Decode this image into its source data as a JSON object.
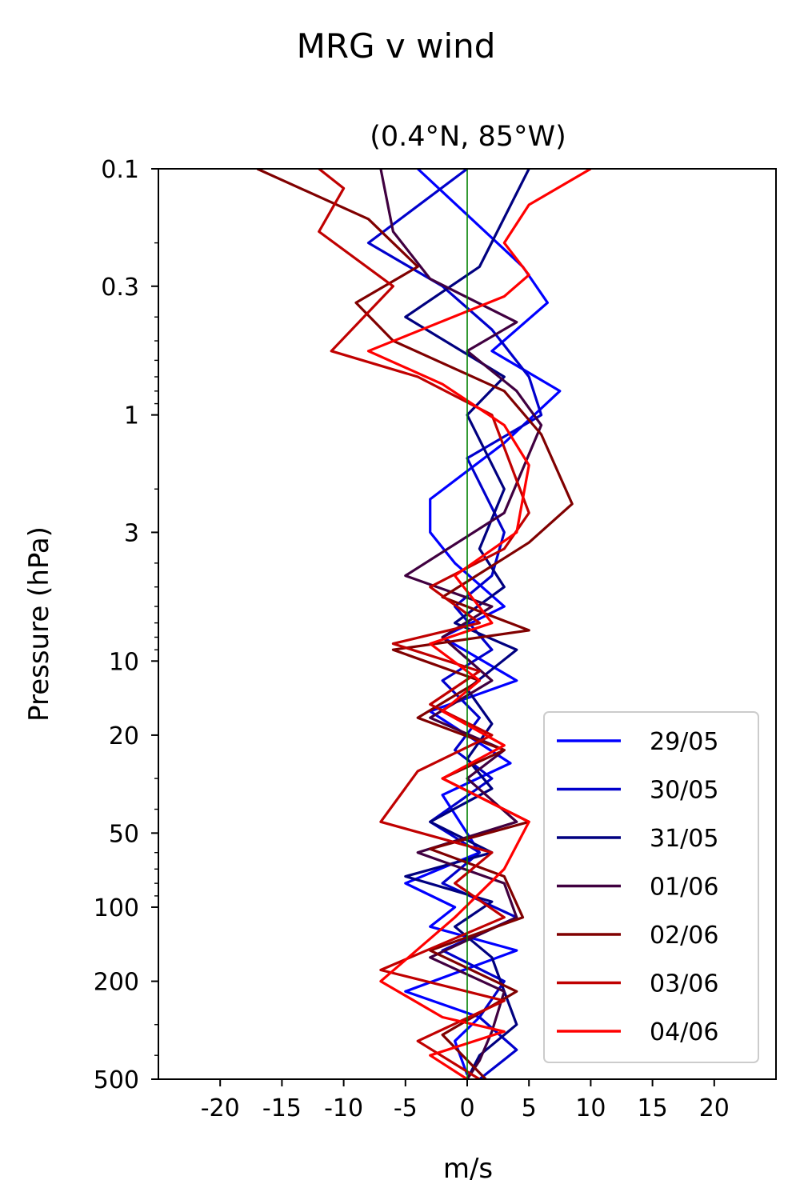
{
  "figure": {
    "suptitle": "MRG v wind",
    "title": "(0.4°N, 85°W)",
    "xlabel": "m/s",
    "ylabel": "Pressure (hPa)"
  },
  "chart_data": {
    "type": "line",
    "title": "(0.4°N, 85°W)",
    "suptitle": "MRG v wind",
    "xlabel": "m/s",
    "ylabel": "Pressure (hPa)",
    "xlim": [
      -25,
      25
    ],
    "ylim": [
      500,
      0.1
    ],
    "yscale": "log",
    "y_inverted": true,
    "xticks": [
      -20,
      -15,
      -10,
      -5,
      0,
      5,
      10,
      15,
      20
    ],
    "xtick_labels": [
      "-20",
      "-15",
      "-10",
      "-5",
      "0",
      "5",
      "10",
      "15",
      "20"
    ],
    "yticks": [
      0.1,
      0.3,
      1,
      3,
      10,
      20,
      50,
      100,
      200,
      500
    ],
    "ytick_labels": [
      "0.1",
      "0.3",
      "1",
      "3",
      "10",
      "20",
      "50",
      "100",
      "200",
      "500"
    ],
    "reference_line": {
      "x": 0,
      "color": "#008000"
    },
    "legend_position": "lower-right",
    "grid": false,
    "series": [
      {
        "name": "29/05",
        "color": "#0000ff",
        "x": [
          -4,
          4.5,
          6.5,
          2,
          7.5,
          3,
          -3,
          -3,
          -1,
          3,
          -2,
          4,
          -3,
          3.5,
          -2,
          1,
          -5,
          -1,
          -3,
          4,
          -5,
          1,
          -1,
          0
        ],
        "y": [
          0.1,
          0.25,
          0.35,
          0.55,
          0.8,
          1.3,
          2.2,
          3.0,
          4.0,
          6.0,
          8.0,
          12,
          16,
          26,
          35,
          60,
          80,
          100,
          120,
          150,
          220,
          280,
          350,
          480
        ]
      },
      {
        "name": "30/05",
        "color": "#0000cc",
        "x": [
          0,
          -8,
          -2,
          2,
          5,
          6,
          0,
          3,
          2,
          -1,
          2,
          -2,
          1,
          -1,
          2,
          -3,
          1,
          -2,
          4,
          -2,
          3,
          1,
          4,
          1
        ],
        "y": [
          0.1,
          0.2,
          0.3,
          0.45,
          0.7,
          1.0,
          1.5,
          3.0,
          4.5,
          6,
          9,
          12,
          17,
          23,
          30,
          45,
          60,
          80,
          110,
          150,
          200,
          280,
          380,
          500
        ]
      },
      {
        "name": "31/05",
        "color": "#000080",
        "x": [
          5,
          1,
          -5,
          3,
          0,
          3,
          1,
          3,
          -1,
          4,
          0,
          2,
          0,
          2,
          -3,
          2,
          -5,
          2,
          -1,
          2,
          3,
          4,
          1,
          0
        ],
        "y": [
          0.1,
          0.25,
          0.4,
          0.7,
          1.0,
          2.0,
          3.5,
          5,
          7,
          9,
          13,
          18,
          25,
          33,
          45,
          60,
          75,
          95,
          120,
          160,
          220,
          300,
          400,
          500
        ]
      },
      {
        "name": "01/06",
        "color": "#400040",
        "x": [
          -7,
          -6,
          -3,
          4,
          0,
          4,
          6,
          3,
          -5,
          2,
          -2,
          2,
          -3,
          3,
          0,
          4,
          -4,
          3,
          4,
          -3,
          3,
          2,
          1,
          0
        ],
        "y": [
          0.1,
          0.18,
          0.28,
          0.42,
          0.55,
          0.8,
          1.1,
          2.5,
          4.5,
          6,
          8,
          12,
          17,
          23,
          30,
          45,
          60,
          80,
          110,
          160,
          220,
          320,
          420,
          500
        ]
      },
      {
        "name": "02/06",
        "color": "#800000",
        "x": [
          -17,
          -8,
          -4,
          -9,
          -6,
          3,
          6,
          8.5,
          5,
          -2,
          5,
          -6,
          1,
          -4,
          3,
          -2,
          5,
          -3,
          3,
          4.5,
          -3,
          4,
          -2,
          1.5
        ],
        "y": [
          0.1,
          0.16,
          0.25,
          0.35,
          0.5,
          0.8,
          1.2,
          2.3,
          3.3,
          5.5,
          7.5,
          9,
          12,
          17,
          23,
          30,
          45,
          58,
          75,
          110,
          150,
          220,
          330,
          500
        ]
      },
      {
        "name": "03/06",
        "color": "#c00000",
        "x": [
          -12,
          -10,
          -12,
          -6,
          -11,
          -4,
          2,
          5,
          3,
          -3,
          1,
          -6,
          1,
          -3,
          2,
          -4,
          -7,
          2,
          -1,
          3,
          -7,
          3,
          -4,
          1
        ],
        "y": [
          0.1,
          0.12,
          0.18,
          0.3,
          0.55,
          0.7,
          1.0,
          2.5,
          3.5,
          5,
          7,
          8.5,
          11,
          15,
          20,
          28,
          45,
          60,
          80,
          110,
          180,
          240,
          350,
          500
        ]
      },
      {
        "name": "04/06",
        "color": "#ff0000",
        "x": [
          10,
          5,
          3,
          5,
          3,
          -8,
          -2,
          3,
          5,
          4,
          -1,
          2,
          -3,
          1,
          -2,
          3,
          -2,
          5,
          3,
          -1,
          -7,
          -2,
          3,
          -3,
          0
        ],
        "y": [
          0.1,
          0.14,
          0.2,
          0.27,
          0.33,
          0.55,
          0.75,
          1.1,
          1.6,
          3,
          4.5,
          7,
          8.5,
          12,
          16,
          22,
          30,
          45,
          70,
          110,
          200,
          280,
          320,
          400,
          500
        ]
      }
    ]
  }
}
